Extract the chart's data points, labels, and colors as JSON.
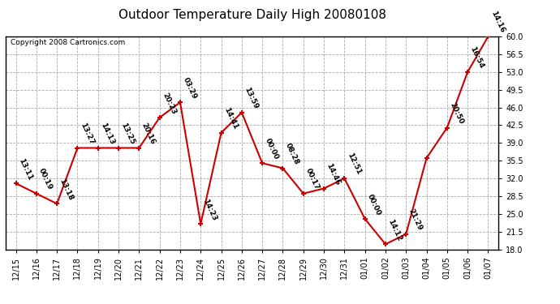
{
  "title": "Outdoor Temperature Daily High 20080108",
  "copyright": "Copyright 2008 Cartronics.com",
  "dates": [
    "12/15",
    "12/16",
    "12/17",
    "12/18",
    "12/19",
    "12/20",
    "12/21",
    "12/22",
    "12/23",
    "12/24",
    "12/25",
    "12/26",
    "12/27",
    "12/28",
    "12/29",
    "12/30",
    "12/31",
    "01/01",
    "01/02",
    "01/03",
    "01/04",
    "01/05",
    "01/06",
    "01/07"
  ],
  "values": [
    31.0,
    29.0,
    27.0,
    38.0,
    38.0,
    38.0,
    38.0,
    44.0,
    47.0,
    23.0,
    41.0,
    45.0,
    35.0,
    34.0,
    29.0,
    30.0,
    32.0,
    24.0,
    19.0,
    21.0,
    36.0,
    42.0,
    53.0,
    60.0
  ],
  "labels": [
    "13:11",
    "00:19",
    "13:18",
    "13:27",
    "14:13",
    "13:25",
    "20:16",
    "20:23",
    "03:29",
    "14:23",
    "14:41",
    "13:59",
    "00:00",
    "08:28",
    "00:17",
    "14:46",
    "12:51",
    "00:00",
    "14:12",
    "21:29",
    "",
    "20:50",
    "16:54",
    "14:16"
  ],
  "ylim_min": 18.0,
  "ylim_max": 60.0,
  "yticks": [
    18.0,
    21.5,
    25.0,
    28.5,
    32.0,
    35.5,
    39.0,
    42.5,
    46.0,
    49.5,
    53.0,
    56.5,
    60.0
  ],
  "line_color": "#cc0000",
  "marker_color": "#cc0000",
  "bg_color": "#ffffff",
  "grid_color": "#aaaaaa",
  "title_fontsize": 11,
  "label_fontsize": 6.5,
  "tick_fontsize": 7,
  "copyright_fontsize": 6.5
}
